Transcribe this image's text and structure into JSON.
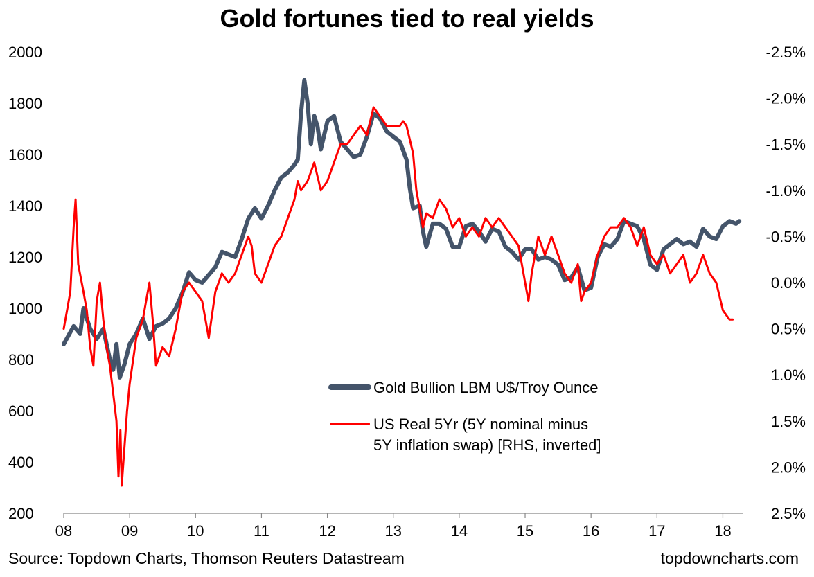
{
  "title": "Gold fortunes tied to real yields",
  "source": "Source: Topdown Charts, Thomson Reuters Datastream",
  "website": "topdowncharts.com",
  "chart_data": {
    "type": "line",
    "title": "Gold fortunes tied to real yields",
    "x_range": [
      2008.0,
      2018.3
    ],
    "x_ticks": [
      {
        "value": 2008,
        "label": "08"
      },
      {
        "value": 2009,
        "label": "09"
      },
      {
        "value": 2010,
        "label": "10"
      },
      {
        "value": 2011,
        "label": "11"
      },
      {
        "value": 2012,
        "label": "12"
      },
      {
        "value": 2013,
        "label": "13"
      },
      {
        "value": 2014,
        "label": "14"
      },
      {
        "value": 2015,
        "label": "15"
      },
      {
        "value": 2016,
        "label": "16"
      },
      {
        "value": 2017,
        "label": "17"
      },
      {
        "value": 2018,
        "label": "18"
      }
    ],
    "y_left": {
      "range": [
        200,
        2000
      ],
      "ticks": [
        {
          "value": 2000,
          "label": "2000"
        },
        {
          "value": 1800,
          "label": "1800"
        },
        {
          "value": 1600,
          "label": "1600"
        },
        {
          "value": 1400,
          "label": "1400"
        },
        {
          "value": 1200,
          "label": "1200"
        },
        {
          "value": 1000,
          "label": "1000"
        },
        {
          "value": 800,
          "label": "800"
        },
        {
          "value": 600,
          "label": "600"
        },
        {
          "value": 400,
          "label": "400"
        },
        {
          "value": 200,
          "label": "200"
        }
      ]
    },
    "y_right": {
      "range": [
        -2.5,
        2.5
      ],
      "inverted": true,
      "ticks": [
        {
          "value": -2.5,
          "label": "-2.5%"
        },
        {
          "value": -2.0,
          "label": "-2.0%"
        },
        {
          "value": -1.5,
          "label": "-1.5%"
        },
        {
          "value": -1.0,
          "label": "-1.0%"
        },
        {
          "value": -0.5,
          "label": "-0.5%"
        },
        {
          "value": 0.0,
          "label": "0.0%"
        },
        {
          "value": 0.5,
          "label": "0.5%"
        },
        {
          "value": 1.0,
          "label": "1.0%"
        },
        {
          "value": 1.5,
          "label": "1.5%"
        },
        {
          "value": 2.0,
          "label": "2.0%"
        },
        {
          "value": 2.5,
          "label": "2.5%"
        }
      ]
    },
    "grid": false,
    "legend_position": "center-right",
    "series": [
      {
        "name": "Gold Bullion LBM U$/Troy Ounce",
        "axis": "left",
        "color": "#44546a",
        "points": [
          [
            2008.0,
            860
          ],
          [
            2008.15,
            930
          ],
          [
            2008.25,
            900
          ],
          [
            2008.3,
            1000
          ],
          [
            2008.4,
            920
          ],
          [
            2008.5,
            880
          ],
          [
            2008.6,
            920
          ],
          [
            2008.7,
            800
          ],
          [
            2008.75,
            760
          ],
          [
            2008.8,
            860
          ],
          [
            2008.85,
            730
          ],
          [
            2008.92,
            780
          ],
          [
            2009.0,
            860
          ],
          [
            2009.1,
            900
          ],
          [
            2009.2,
            960
          ],
          [
            2009.3,
            880
          ],
          [
            2009.4,
            930
          ],
          [
            2009.5,
            940
          ],
          [
            2009.6,
            960
          ],
          [
            2009.7,
            1000
          ],
          [
            2009.8,
            1060
          ],
          [
            2009.9,
            1140
          ],
          [
            2010.0,
            1110
          ],
          [
            2010.1,
            1100
          ],
          [
            2010.2,
            1130
          ],
          [
            2010.3,
            1160
          ],
          [
            2010.4,
            1220
          ],
          [
            2010.5,
            1210
          ],
          [
            2010.6,
            1200
          ],
          [
            2010.7,
            1270
          ],
          [
            2010.8,
            1350
          ],
          [
            2010.9,
            1390
          ],
          [
            2011.0,
            1350
          ],
          [
            2011.1,
            1400
          ],
          [
            2011.2,
            1460
          ],
          [
            2011.3,
            1510
          ],
          [
            2011.4,
            1530
          ],
          [
            2011.5,
            1560
          ],
          [
            2011.55,
            1580
          ],
          [
            2011.6,
            1760
          ],
          [
            2011.65,
            1890
          ],
          [
            2011.7,
            1800
          ],
          [
            2011.75,
            1640
          ],
          [
            2011.8,
            1750
          ],
          [
            2011.85,
            1710
          ],
          [
            2011.9,
            1620
          ],
          [
            2012.0,
            1730
          ],
          [
            2012.1,
            1750
          ],
          [
            2012.2,
            1650
          ],
          [
            2012.3,
            1620
          ],
          [
            2012.4,
            1590
          ],
          [
            2012.5,
            1600
          ],
          [
            2012.6,
            1670
          ],
          [
            2012.7,
            1760
          ],
          [
            2012.8,
            1740
          ],
          [
            2012.9,
            1690
          ],
          [
            2013.0,
            1670
          ],
          [
            2013.1,
            1650
          ],
          [
            2013.2,
            1580
          ],
          [
            2013.25,
            1470
          ],
          [
            2013.3,
            1390
          ],
          [
            2013.4,
            1400
          ],
          [
            2013.45,
            1300
          ],
          [
            2013.5,
            1240
          ],
          [
            2013.6,
            1330
          ],
          [
            2013.7,
            1330
          ],
          [
            2013.8,
            1310
          ],
          [
            2013.9,
            1240
          ],
          [
            2014.0,
            1240
          ],
          [
            2014.1,
            1320
          ],
          [
            2014.2,
            1330
          ],
          [
            2014.3,
            1300
          ],
          [
            2014.4,
            1260
          ],
          [
            2014.5,
            1310
          ],
          [
            2014.6,
            1300
          ],
          [
            2014.7,
            1240
          ],
          [
            2014.8,
            1220
          ],
          [
            2014.9,
            1190
          ],
          [
            2015.0,
            1230
          ],
          [
            2015.1,
            1230
          ],
          [
            2015.2,
            1190
          ],
          [
            2015.3,
            1200
          ],
          [
            2015.4,
            1190
          ],
          [
            2015.5,
            1170
          ],
          [
            2015.6,
            1110
          ],
          [
            2015.7,
            1120
          ],
          [
            2015.8,
            1160
          ],
          [
            2015.9,
            1070
          ],
          [
            2016.0,
            1080
          ],
          [
            2016.1,
            1200
          ],
          [
            2016.2,
            1250
          ],
          [
            2016.3,
            1240
          ],
          [
            2016.4,
            1270
          ],
          [
            2016.5,
            1340
          ],
          [
            2016.6,
            1330
          ],
          [
            2016.7,
            1320
          ],
          [
            2016.8,
            1270
          ],
          [
            2016.9,
            1170
          ],
          [
            2017.0,
            1150
          ],
          [
            2017.1,
            1230
          ],
          [
            2017.2,
            1250
          ],
          [
            2017.3,
            1270
          ],
          [
            2017.4,
            1250
          ],
          [
            2017.5,
            1260
          ],
          [
            2017.6,
            1240
          ],
          [
            2017.7,
            1310
          ],
          [
            2017.8,
            1280
          ],
          [
            2017.9,
            1270
          ],
          [
            2018.0,
            1320
          ],
          [
            2018.1,
            1340
          ],
          [
            2018.2,
            1330
          ],
          [
            2018.25,
            1340
          ]
        ]
      },
      {
        "name": "US Real 5Yr (5Y nominal minus 5Y inflation swap) [RHS, inverted]",
        "axis": "right",
        "color": "#ff0000",
        "points": [
          [
            2008.0,
            0.5
          ],
          [
            2008.05,
            0.3
          ],
          [
            2008.1,
            0.1
          ],
          [
            2008.15,
            -0.6
          ],
          [
            2008.18,
            -0.9
          ],
          [
            2008.22,
            -0.2
          ],
          [
            2008.3,
            0.1
          ],
          [
            2008.35,
            0.3
          ],
          [
            2008.4,
            0.7
          ],
          [
            2008.45,
            0.9
          ],
          [
            2008.5,
            0.2
          ],
          [
            2008.55,
            0.0
          ],
          [
            2008.6,
            0.4
          ],
          [
            2008.65,
            0.7
          ],
          [
            2008.7,
            0.9
          ],
          [
            2008.75,
            1.2
          ],
          [
            2008.8,
            1.5
          ],
          [
            2008.83,
            2.1
          ],
          [
            2008.86,
            1.6
          ],
          [
            2008.88,
            2.2
          ],
          [
            2008.92,
            1.8
          ],
          [
            2008.96,
            1.4
          ],
          [
            2009.0,
            1.1
          ],
          [
            2009.1,
            0.6
          ],
          [
            2009.2,
            0.4
          ],
          [
            2009.25,
            0.2
          ],
          [
            2009.3,
            0.0
          ],
          [
            2009.35,
            0.4
          ],
          [
            2009.4,
            0.9
          ],
          [
            2009.5,
            0.7
          ],
          [
            2009.6,
            0.8
          ],
          [
            2009.7,
            0.5
          ],
          [
            2009.8,
            0.1
          ],
          [
            2009.9,
            0.0
          ],
          [
            2010.0,
            0.1
          ],
          [
            2010.1,
            0.2
          ],
          [
            2010.2,
            0.6
          ],
          [
            2010.3,
            0.1
          ],
          [
            2010.4,
            -0.1
          ],
          [
            2010.5,
            0.0
          ],
          [
            2010.6,
            -0.1
          ],
          [
            2010.7,
            -0.3
          ],
          [
            2010.8,
            -0.5
          ],
          [
            2010.85,
            -0.4
          ],
          [
            2010.9,
            -0.1
          ],
          [
            2011.0,
            0.0
          ],
          [
            2011.1,
            -0.2
          ],
          [
            2011.2,
            -0.4
          ],
          [
            2011.3,
            -0.5
          ],
          [
            2011.4,
            -0.7
          ],
          [
            2011.5,
            -0.9
          ],
          [
            2011.55,
            -1.1
          ],
          [
            2011.6,
            -1.0
          ],
          [
            2011.7,
            -1.1
          ],
          [
            2011.8,
            -1.3
          ],
          [
            2011.9,
            -1.0
          ],
          [
            2012.0,
            -1.1
          ],
          [
            2012.1,
            -1.3
          ],
          [
            2012.2,
            -1.5
          ],
          [
            2012.3,
            -1.5
          ],
          [
            2012.4,
            -1.6
          ],
          [
            2012.5,
            -1.7
          ],
          [
            2012.6,
            -1.6
          ],
          [
            2012.7,
            -1.9
          ],
          [
            2012.8,
            -1.8
          ],
          [
            2012.9,
            -1.7
          ],
          [
            2013.0,
            -1.7
          ],
          [
            2013.1,
            -1.7
          ],
          [
            2013.15,
            -1.75
          ],
          [
            2013.2,
            -1.7
          ],
          [
            2013.3,
            -1.4
          ],
          [
            2013.35,
            -1.0
          ],
          [
            2013.4,
            -0.8
          ],
          [
            2013.45,
            -0.6
          ],
          [
            2013.5,
            -0.75
          ],
          [
            2013.6,
            -0.7
          ],
          [
            2013.7,
            -0.9
          ],
          [
            2013.8,
            -0.8
          ],
          [
            2013.9,
            -0.6
          ],
          [
            2014.0,
            -0.7
          ],
          [
            2014.1,
            -0.5
          ],
          [
            2014.2,
            -0.6
          ],
          [
            2014.3,
            -0.5
          ],
          [
            2014.4,
            -0.7
          ],
          [
            2014.5,
            -0.6
          ],
          [
            2014.6,
            -0.7
          ],
          [
            2014.7,
            -0.6
          ],
          [
            2014.8,
            -0.5
          ],
          [
            2014.9,
            -0.4
          ],
          [
            2015.0,
            0.0
          ],
          [
            2015.05,
            0.2
          ],
          [
            2015.1,
            -0.1
          ],
          [
            2015.2,
            -0.5
          ],
          [
            2015.3,
            -0.3
          ],
          [
            2015.4,
            -0.5
          ],
          [
            2015.5,
            -0.3
          ],
          [
            2015.6,
            -0.1
          ],
          [
            2015.7,
            0.0
          ],
          [
            2015.8,
            -0.2
          ],
          [
            2015.85,
            0.2
          ],
          [
            2015.9,
            0.1
          ],
          [
            2016.0,
            0.0
          ],
          [
            2016.1,
            -0.3
          ],
          [
            2016.2,
            -0.5
          ],
          [
            2016.3,
            -0.6
          ],
          [
            2016.4,
            -0.6
          ],
          [
            2016.5,
            -0.7
          ],
          [
            2016.6,
            -0.6
          ],
          [
            2016.7,
            -0.4
          ],
          [
            2016.8,
            -0.6
          ],
          [
            2016.9,
            -0.3
          ],
          [
            2017.0,
            -0.2
          ],
          [
            2017.1,
            -0.3
          ],
          [
            2017.2,
            -0.1
          ],
          [
            2017.3,
            -0.2
          ],
          [
            2017.4,
            -0.3
          ],
          [
            2017.5,
            0.0
          ],
          [
            2017.6,
            -0.1
          ],
          [
            2017.7,
            -0.3
          ],
          [
            2017.8,
            -0.1
          ],
          [
            2017.9,
            0.0
          ],
          [
            2018.0,
            0.3
          ],
          [
            2018.05,
            0.35
          ],
          [
            2018.1,
            0.4
          ],
          [
            2018.15,
            0.4
          ]
        ]
      }
    ]
  }
}
